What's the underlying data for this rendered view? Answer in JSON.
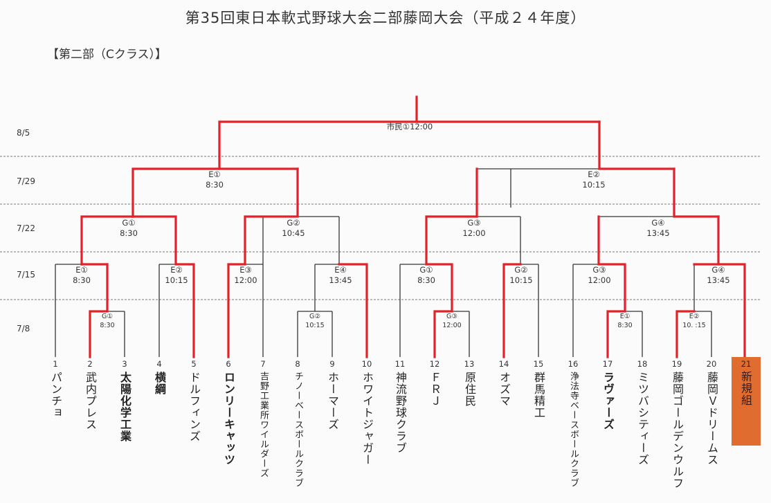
{
  "title": "第35回東日本軟式野球大会二部藤岡大会（平成２４年度）",
  "section": "【第二部（Cクラス）】",
  "colors": {
    "winner_line": "#e2222b",
    "bracket_line": "#333333",
    "dotted": "#777777",
    "highlight": "#e06d2f"
  },
  "dates": [
    "8/5",
    "7/29",
    "7/22",
    "7/15",
    "7/8"
  ],
  "final": {
    "label": "市民①12:00"
  },
  "semis": [
    {
      "code": "E①",
      "time": "8:30"
    },
    {
      "code": "E②",
      "time": "10:15"
    }
  ],
  "quarters": [
    {
      "code": "G①",
      "time": "8:30"
    },
    {
      "code": "G②",
      "time": "10:45"
    },
    {
      "code": "G③",
      "time": "12:00"
    },
    {
      "code": "G④",
      "time": "13:45"
    }
  ],
  "round2": [
    {
      "code": "E①",
      "time": "8:30"
    },
    {
      "code": "E②",
      "time": "10:15"
    },
    {
      "code": "E③",
      "time": "12:00"
    },
    {
      "code": "E④",
      "time": "13:45"
    },
    {
      "code": "G①",
      "time": "8:30"
    },
    {
      "code": "G②",
      "time": "10:15"
    },
    {
      "code": "G③",
      "time": "12:00"
    },
    {
      "code": "G④",
      "time": "13:45"
    }
  ],
  "round1": [
    {
      "code": "G①",
      "time": "8:30"
    },
    {
      "code": "G②",
      "time": "10:15"
    },
    {
      "code": "G③",
      "time": "12:00"
    },
    {
      "code": "E①",
      "time": "8:30"
    },
    {
      "code": "E②",
      "time": "10. :15"
    }
  ],
  "teams": [
    {
      "num": "1",
      "name": "パンチョ"
    },
    {
      "num": "2",
      "name": "武内プレス"
    },
    {
      "num": "3",
      "name": "太陽化学工業"
    },
    {
      "num": "4",
      "name": "横綱"
    },
    {
      "num": "5",
      "name": "ドルフィンズ"
    },
    {
      "num": "6",
      "name": "ロンリーキャッツ"
    },
    {
      "num": "7",
      "name": "吉野工業所ワイルダーズ"
    },
    {
      "num": "8",
      "name": "チノーベースボールクラブ"
    },
    {
      "num": "9",
      "name": "ホーマーズ"
    },
    {
      "num": "10",
      "name": "ホワイトジャガー"
    },
    {
      "num": "11",
      "name": "神流野球クラブ"
    },
    {
      "num": "12",
      "name": "ＦＲＪ"
    },
    {
      "num": "13",
      "name": "原住民"
    },
    {
      "num": "14",
      "name": "オズマ"
    },
    {
      "num": "15",
      "name": "群馬精工"
    },
    {
      "num": "16",
      "name": "浄法寺ベースボールクラブ"
    },
    {
      "num": "17",
      "name": "ラヴァーズ"
    },
    {
      "num": "18",
      "name": "ミツバシティーズ"
    },
    {
      "num": "19",
      "name": "藤岡ゴールデンウルフ"
    },
    {
      "num": "20",
      "name": "藤岡Ｖドリームス"
    },
    {
      "num": "21",
      "name": "新規組"
    }
  ]
}
